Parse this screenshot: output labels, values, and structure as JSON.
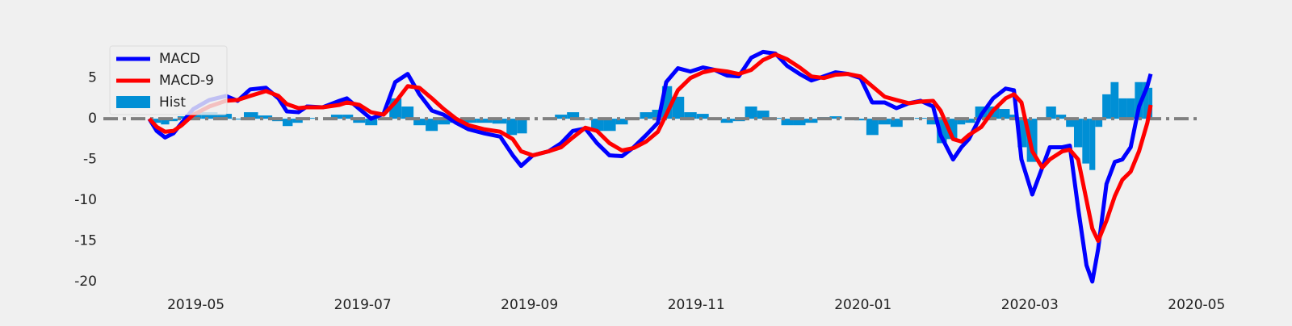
{
  "chart_data": {
    "type": "line",
    "legend": "upper left",
    "background": "#f0f0f0",
    "xlim": [
      3.89,
      17.06
    ],
    "ylim": [
      -20.6,
      12.6
    ],
    "xticks": [
      {
        "value": 5,
        "label": "2019-05"
      },
      {
        "value": 7,
        "label": "2019-07"
      },
      {
        "value": 9,
        "label": "2019-09"
      },
      {
        "value": 11,
        "label": "2019-11"
      },
      {
        "value": 13,
        "label": "2020-01"
      },
      {
        "value": 15,
        "label": "2020-03"
      },
      {
        "value": 17,
        "label": "2020-05"
      }
    ],
    "yticks": [
      -20,
      -15,
      -10,
      -5,
      0,
      5
    ],
    "hlines": [
      {
        "value": 0,
        "color": "#808080"
      }
    ],
    "x": [
      4.44,
      4.53,
      4.63,
      4.73,
      4.83,
      4.97,
      5.16,
      5.36,
      5.5,
      5.65,
      5.84,
      5.99,
      6.09,
      6.23,
      6.33,
      6.52,
      6.72,
      6.81,
      6.96,
      7.1,
      7.25,
      7.39,
      7.54,
      7.68,
      7.83,
      7.97,
      8.12,
      8.27,
      8.46,
      8.65,
      8.8,
      8.9,
      9.04,
      9.23,
      9.38,
      9.52,
      9.67,
      9.81,
      9.96,
      10.11,
      10.25,
      10.4,
      10.54,
      10.64,
      10.78,
      10.93,
      11.08,
      11.22,
      11.37,
      11.51,
      11.66,
      11.8,
      11.95,
      12.09,
      12.24,
      12.38,
      12.53,
      12.67,
      12.82,
      12.97,
      13.11,
      13.26,
      13.4,
      13.55,
      13.69,
      13.84,
      13.93,
      14.08,
      14.18,
      14.27,
      14.42,
      14.56,
      14.71,
      14.81,
      14.9,
      15.03,
      15.15,
      15.24,
      15.39,
      15.48,
      15.58,
      15.68,
      15.75,
      15.82,
      15.92,
      16.02,
      16.11,
      16.21,
      16.31,
      16.41,
      16.45
    ],
    "series": [
      {
        "name": "Hist",
        "type": "bar",
        "color": "#008fd5",
        "values": [
          0,
          -0.5,
          -0.7,
          -0.3,
          0.3,
          0.7,
          0.8,
          0.6,
          -0.1,
          0.8,
          0.4,
          -0.3,
          -0.9,
          -0.5,
          0.1,
          0,
          0.5,
          0.5,
          -0.5,
          -0.8,
          0.1,
          2.5,
          1.5,
          -0.8,
          -1.5,
          -0.7,
          -0.5,
          -0.5,
          -0.5,
          -0.6,
          -2,
          -1.8,
          0,
          0,
          0.5,
          0.8,
          -0.1,
          -1.5,
          -1.5,
          -0.7,
          0.1,
          0.8,
          1.1,
          4,
          2.7,
          0.8,
          0.6,
          0,
          -0.5,
          -0.3,
          1.5,
          1,
          0.1,
          -0.8,
          -0.8,
          -0.5,
          0.2,
          0.3,
          0,
          -0.2,
          -2,
          -0.7,
          -1,
          0,
          0.1,
          -0.7,
          -3,
          -2.5,
          -0.7,
          -0.5,
          1.5,
          1.5,
          1.2,
          0.5,
          -3.5,
          -5.3,
          0,
          1.5,
          0.5,
          -1,
          -3.5,
          -5.5,
          -6.3,
          -1,
          3,
          4.5,
          2.5,
          2.5,
          4.5,
          4.5,
          3.8
        ]
      },
      {
        "name": "MACD",
        "type": "line",
        "color": "#0000ff",
        "values": [
          0,
          -1.5,
          -2.3,
          -1.8,
          -0.5,
          1.2,
          2.3,
          2.8,
          2.2,
          3.6,
          3.8,
          2.5,
          0.9,
          0.8,
          1.5,
          1.4,
          2.2,
          2.5,
          1.2,
          0,
          0.6,
          4.5,
          5.5,
          3,
          1,
          0.5,
          -0.5,
          -1.3,
          -1.8,
          -2.2,
          -4.5,
          -5.8,
          -4.5,
          -4,
          -3,
          -1.5,
          -1.2,
          -3,
          -4.5,
          -4.6,
          -3.5,
          -2,
          -0.5,
          4.5,
          6.2,
          5.8,
          6.3,
          6,
          5.3,
          5.2,
          7.5,
          8.2,
          8,
          6.5,
          5.5,
          4.7,
          5.2,
          5.7,
          5.5,
          5,
          2,
          2,
          1.3,
          1.9,
          2.2,
          1.5,
          -2,
          -5,
          -3.5,
          -2.5,
          0.5,
          2.5,
          3.7,
          3.5,
          -5,
          -9.3,
          -6,
          -3.5,
          -3.5,
          -3.3,
          -11,
          -18,
          -20,
          -16,
          -8,
          -5.3,
          -5,
          -3.5,
          1.5,
          4,
          5.5
        ]
      },
      {
        "name": "MACD-9",
        "type": "line",
        "color": "#ff0000",
        "values": [
          0,
          -1,
          -1.6,
          -1.5,
          -0.8,
          0.5,
          1.5,
          2.2,
          2.3,
          2.8,
          3.4,
          2.8,
          1.8,
          1.3,
          1.4,
          1.4,
          1.7,
          2,
          1.7,
          0.8,
          0.5,
          2,
          4,
          3.8,
          2.5,
          1.2,
          0,
          -0.8,
          -1.3,
          -1.6,
          -2.5,
          -4,
          -4.5,
          -4,
          -3.5,
          -2.3,
          -1.1,
          -1.5,
          -3,
          -3.9,
          -3.6,
          -2.8,
          -1.6,
          0.5,
          3.5,
          5,
          5.7,
          6,
          5.8,
          5.5,
          6,
          7.2,
          7.9,
          7.3,
          6.3,
          5.2,
          5,
          5.4,
          5.5,
          5.2,
          4,
          2.7,
          2.3,
          1.9,
          2.1,
          2.2,
          1,
          -2.5,
          -2.8,
          -2,
          -1,
          1,
          2.5,
          3,
          2,
          -4,
          -6,
          -5,
          -4,
          -3.8,
          -5,
          -10,
          -13.5,
          -15,
          -12.5,
          -9.5,
          -7.5,
          -6.5,
          -4,
          -0.5,
          1.7
        ]
      }
    ]
  }
}
